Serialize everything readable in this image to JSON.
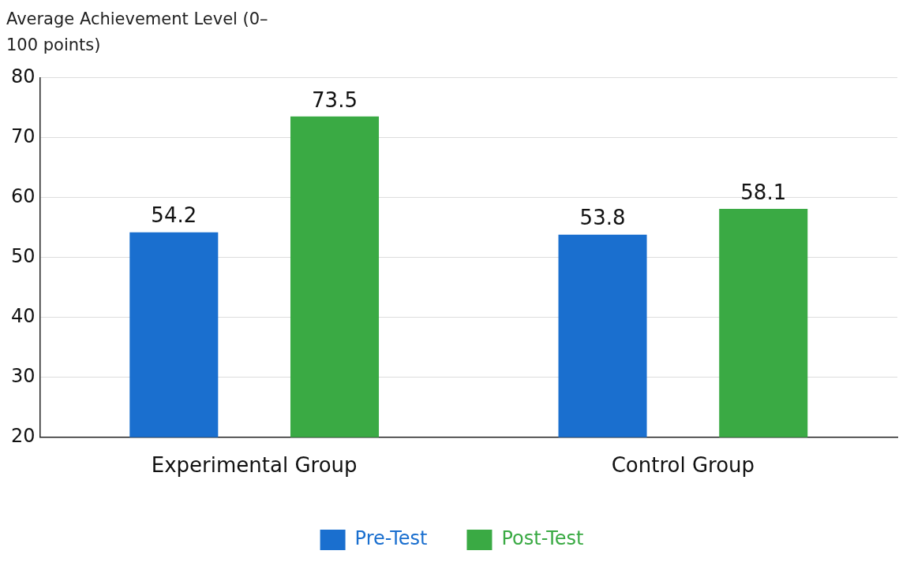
{
  "chart_data": {
    "type": "bar",
    "ylabel": "Average Achievement Level (0–100 points)",
    "categories": [
      "Experimental Group",
      "Control Group"
    ],
    "series": [
      {
        "name": "Pre-Test",
        "color": "#1a6fcf",
        "values": [
          54.2,
          53.8
        ]
      },
      {
        "name": "Post-Test",
        "color": "#3aaa44",
        "values": [
          73.5,
          58.1
        ]
      }
    ],
    "ylim": [
      20,
      80
    ],
    "yticks": [
      20,
      30,
      40,
      50,
      60,
      70,
      80
    ],
    "grid": "y",
    "legend": "bottom",
    "data_labels": true
  }
}
